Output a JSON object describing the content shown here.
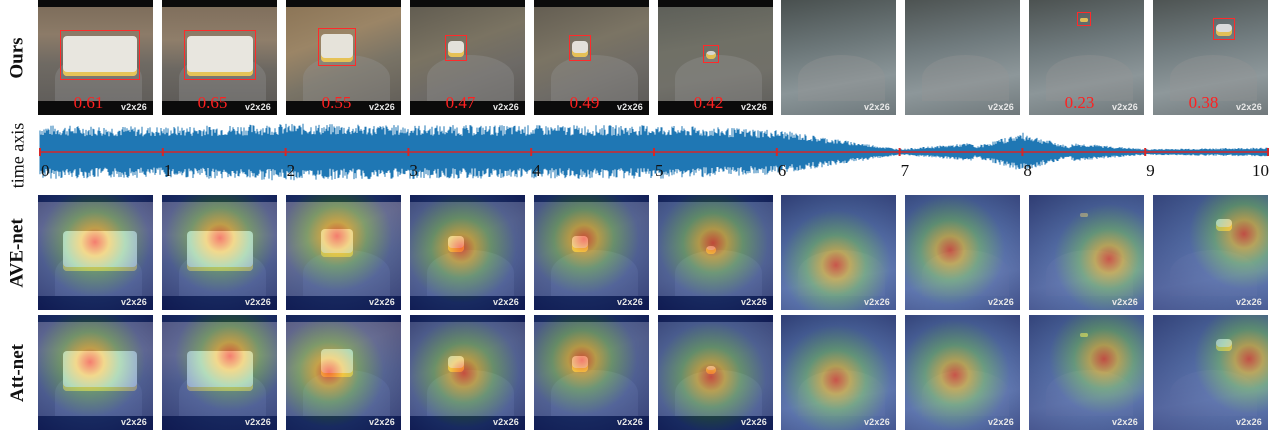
{
  "row_labels": {
    "ours": "Ours",
    "time_axis": "time axis",
    "ave_net": "AVE-net",
    "att_net": "Att-net"
  },
  "watermark": "v2x26",
  "ours_scores": [
    "0.61",
    "0.65",
    "0.55",
    "0.47",
    "0.49",
    "0.42",
    "",
    "",
    "0.23",
    "0.38"
  ],
  "time_ticks": [
    "0",
    "1",
    "2",
    "3",
    "4",
    "5",
    "6",
    "7",
    "8",
    "9",
    "10"
  ],
  "waveform_levels": [
    0.9,
    0.85,
    0.95,
    0.9,
    0.9,
    0.9,
    0.75,
    0.1,
    0.45,
    0.1,
    0.15
  ],
  "colors": {
    "detection_box": "#ff2a2a",
    "score_text": "#ff2020",
    "waveform": "#1f77b4",
    "axis_line": "#d62728"
  }
}
